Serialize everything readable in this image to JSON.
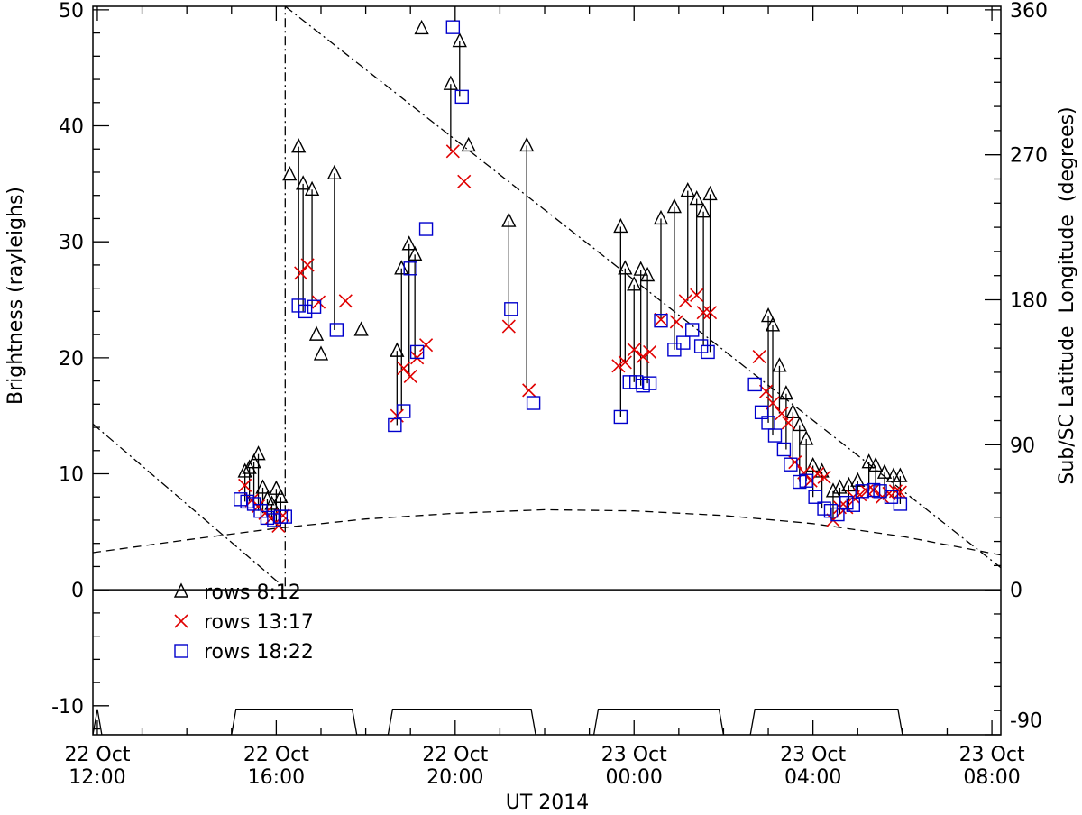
{
  "chart_data": {
    "type": "scatter",
    "xlabel": "UT 2014",
    "ylabel_left": "Brightness (rayleighs)",
    "ylabel_right": "Sub/SC Latitude  Longitude  (degrees)",
    "xlim": [
      -0.1,
      20.2
    ],
    "ylim": [
      -12.5,
      50.3
    ],
    "x_ticks": [
      {
        "x": 0,
        "line1": "22 Oct",
        "line2": "12:00"
      },
      {
        "x": 4,
        "line1": "22 Oct",
        "line2": "16:00"
      },
      {
        "x": 8,
        "line1": "22 Oct",
        "line2": "20:00"
      },
      {
        "x": 12,
        "line1": "23 Oct",
        "line2": "00:00"
      },
      {
        "x": 16,
        "line1": "23 Oct",
        "line2": "04:00"
      },
      {
        "x": 20,
        "line1": "23 Oct",
        "line2": "08:00"
      }
    ],
    "y_ticks_left": [
      "-10",
      "0",
      "10",
      "20",
      "30",
      "40",
      "50"
    ],
    "y_ticks_right": [
      {
        "y": -11.2,
        "label": "-90"
      },
      {
        "y": 0,
        "label": "0"
      },
      {
        "y": 12.5,
        "label": "90"
      },
      {
        "y": 25,
        "label": "180"
      },
      {
        "y": 37.5,
        "label": "270"
      },
      {
        "y": 50,
        "label": "360"
      }
    ],
    "zero_line": 0,
    "legend": [
      {
        "label": "rows 8:12",
        "color": "#000000",
        "marker": "triangle"
      },
      {
        "label": "rows 13:17",
        "color": "#e00000",
        "marker": "x"
      },
      {
        "label": "rows 18:22",
        "color": "#0000cc",
        "marker": "square"
      }
    ],
    "series": [
      {
        "name": "rows 8:12",
        "marker": "triangle",
        "color": "#000000",
        "x": [
          3.3,
          3.4,
          3.5,
          3.6,
          3.7,
          3.8,
          3.9,
          4.0,
          4.1,
          4.3,
          4.5,
          4.6,
          4.8,
          4.9,
          5.0,
          5.3,
          5.9,
          6.7,
          6.8,
          6.97,
          7.1,
          7.25,
          7.9,
          8.1,
          8.3,
          9.2,
          9.6,
          11.7,
          11.8,
          12.0,
          12.15,
          12.3,
          12.6,
          12.9,
          13.2,
          13.4,
          13.55,
          13.7,
          15.0,
          15.1,
          15.25,
          15.4,
          15.55,
          15.7,
          15.85,
          16.0,
          16.2,
          16.45,
          16.6,
          16.8,
          17.0,
          17.25,
          17.4,
          17.6,
          17.8,
          17.95
        ],
        "y": [
          10.2,
          10.5,
          11.0,
          11.7,
          8.8,
          7.8,
          7.4,
          8.7,
          8.0,
          35.8,
          38.2,
          35.0,
          34.5,
          22.0,
          20.3,
          35.9,
          22.4,
          20.6,
          27.7,
          29.8,
          28.9,
          48.4,
          43.6,
          47.3,
          38.3,
          31.8,
          38.3,
          31.3,
          27.7,
          26.3,
          27.6,
          27.1,
          32.0,
          33.0,
          34.4,
          33.7,
          32.6,
          34.1,
          23.6,
          22.8,
          19.3,
          16.9,
          15.3,
          14.2,
          13.0,
          10.7,
          10.2,
          8.5,
          8.8,
          9.0,
          9.4,
          11.0,
          10.7,
          10.1,
          9.8,
          9.8
        ]
      },
      {
        "name": "rows 13:17",
        "marker": "x",
        "color": "#e00000",
        "x": [
          3.3,
          3.45,
          3.6,
          3.75,
          3.9,
          4.05,
          4.15,
          4.55,
          4.7,
          4.95,
          5.55,
          6.7,
          6.85,
          7.0,
          7.15,
          7.35,
          7.95,
          8.2,
          9.2,
          9.65,
          11.65,
          11.8,
          12.0,
          12.2,
          12.35,
          12.6,
          12.95,
          13.15,
          13.4,
          13.55,
          13.7,
          14.8,
          14.95,
          15.1,
          15.3,
          15.45,
          15.6,
          15.8,
          15.95,
          16.1,
          16.25,
          16.45,
          16.6,
          16.75,
          16.9,
          17.05,
          17.2,
          17.35,
          17.55,
          17.7,
          17.85,
          17.95
        ],
        "y": [
          9.0,
          7.7,
          7.2,
          6.6,
          6.2,
          5.5,
          6.4,
          27.3,
          28.0,
          24.8,
          24.9,
          15.0,
          19.1,
          18.4,
          20.0,
          21.1,
          37.8,
          35.2,
          22.7,
          17.2,
          19.3,
          19.6,
          20.7,
          20.1,
          20.5,
          23.3,
          23.1,
          24.9,
          25.4,
          23.9,
          23.9,
          20.1,
          17.1,
          16.1,
          15.2,
          14.4,
          11.0,
          10.1,
          9.4,
          10.0,
          9.7,
          6.0,
          7.1,
          7.1,
          8.0,
          8.2,
          8.5,
          8.6,
          8.0,
          8.3,
          8.5,
          8.4
        ],
        "note": "x values approximate; see hours since 12:00"
      },
      {
        "name": "rows 18:22",
        "marker": "square",
        "color": "#0000cc",
        "x": [
          3.2,
          3.35,
          3.5,
          3.65,
          3.8,
          3.95,
          4.1,
          4.2,
          4.5,
          4.65,
          4.85,
          5.35,
          6.65,
          6.85,
          7.0,
          7.15,
          7.35,
          7.95,
          8.15,
          9.25,
          9.75,
          11.7,
          11.9,
          12.05,
          12.2,
          12.35,
          12.6,
          12.9,
          13.1,
          13.3,
          13.5,
          13.65,
          14.7,
          14.85,
          15.0,
          15.15,
          15.35,
          15.5,
          15.7,
          15.85,
          16.05,
          16.25,
          16.4,
          16.55,
          16.75,
          16.9,
          17.1,
          17.35,
          17.5,
          17.75,
          17.95
        ],
        "y": [
          7.8,
          7.6,
          7.4,
          6.8,
          6.2,
          6.0,
          6.3,
          6.3,
          24.5,
          24.0,
          24.4,
          22.4,
          14.2,
          15.4,
          27.7,
          20.5,
          31.1,
          48.5,
          42.5,
          24.2,
          16.1,
          14.9,
          17.9,
          17.9,
          17.6,
          17.8,
          23.2,
          20.7,
          21.3,
          22.4,
          21.0,
          20.5,
          17.7,
          15.3,
          14.4,
          13.3,
          12.1,
          10.8,
          9.3,
          9.4,
          8.0,
          7.0,
          6.8,
          6.5,
          7.5,
          7.3,
          8.5,
          8.6,
          8.5,
          8.0,
          7.4
        ]
      }
    ],
    "obs_pairs": [
      {
        "x": 3.3,
        "top": 10.2
      },
      {
        "x": 3.4,
        "top": 10.5
      },
      {
        "x": 3.5,
        "top": 11.0
      },
      {
        "x": 3.6,
        "top": 11.7
      },
      {
        "x": 3.7,
        "top": 8.8
      },
      {
        "x": 3.8,
        "top": 7.8
      },
      {
        "x": 3.9,
        "top": 7.4
      },
      {
        "x": 4.0,
        "top": 8.7
      },
      {
        "x": 4.1,
        "top": 8.0
      },
      {
        "x": 4.5,
        "top": 35.8
      },
      {
        "x": 4.7,
        "top": 38.2
      },
      {
        "x": 4.85,
        "top": 35.0
      },
      {
        "x": 4.95,
        "top": 34.5
      },
      {
        "x": 5.55,
        "top": 35.9
      },
      {
        "x": 6.7,
        "top": 22.0
      },
      {
        "x": 6.85,
        "top": 20.3
      },
      {
        "x": 7.0,
        "top": 27.7
      },
      {
        "x": 7.15,
        "top": 29.8
      },
      {
        "x": 7.3,
        "top": 28.9
      },
      {
        "x": 7.95,
        "top": 48.4
      },
      {
        "x": 8.15,
        "top": 43.6
      },
      {
        "x": 8.35,
        "top": 47.3
      },
      {
        "x": 9.25,
        "top": 31.8
      },
      {
        "x": 9.7,
        "top": 38.3
      },
      {
        "x": 11.7,
        "top": 31.3
      },
      {
        "x": 11.9,
        "top": 27.7
      },
      {
        "x": 12.05,
        "top": 26.3
      },
      {
        "x": 12.2,
        "top": 27.6
      },
      {
        "x": 12.35,
        "top": 27.1
      },
      {
        "x": 12.6,
        "top": 32.0
      },
      {
        "x": 12.95,
        "top": 33.0
      },
      {
        "x": 13.15,
        "top": 34.4
      },
      {
        "x": 13.35,
        "top": 33.7
      },
      {
        "x": 13.5,
        "top": 32.6
      },
      {
        "x": 13.7,
        "top": 34.1
      },
      {
        "x": 14.8,
        "top": 23.6
      },
      {
        "x": 14.95,
        "top": 22.8
      },
      {
        "x": 15.1,
        "top": 19.3
      },
      {
        "x": 15.3,
        "top": 16.9
      },
      {
        "x": 15.45,
        "top": 15.3
      },
      {
        "x": 15.6,
        "top": 14.2
      },
      {
        "x": 15.8,
        "top": 13.0
      },
      {
        "x": 16.0,
        "top": 10.7
      },
      {
        "x": 16.15,
        "top": 10.2
      }
    ],
    "curves": {
      "dashed_latitude": {
        "x": [
          -0.1,
          2,
          4,
          6,
          8,
          10,
          12,
          14,
          16,
          18,
          20.2
        ],
        "y": [
          3.2,
          4.3,
          5.3,
          6.1,
          6.6,
          6.9,
          6.8,
          6.4,
          5.7,
          4.6,
          3.0
        ]
      },
      "dashdot_longitude": [
        {
          "x": [
            -0.1,
            4.15
          ],
          "y": [
            14.3,
            0.3
          ]
        },
        {
          "x": [
            4.2,
            4.2
          ],
          "y": [
            0.3,
            50.3
          ]
        },
        {
          "x": [
            4.2,
            20.2
          ],
          "y": [
            50.3,
            1.9
          ]
        }
      ],
      "bottom_trace": {
        "x": [
          -0.1,
          0.0,
          0.1,
          3.0,
          3.1,
          5.7,
          5.8,
          6.5,
          6.6,
          9.7,
          9.8,
          11.1,
          11.2,
          13.9,
          14.0,
          14.6,
          14.7,
          17.9,
          18.0,
          20.2
        ],
        "y": [
          -12.5,
          -10.3,
          -12.5,
          -12.5,
          -10.3,
          -10.3,
          -12.5,
          -12.5,
          -10.3,
          -10.3,
          -12.5,
          -12.5,
          -10.3,
          -10.3,
          -12.5,
          -12.5,
          -10.3,
          -10.3,
          -12.5,
          -12.5
        ]
      }
    }
  }
}
